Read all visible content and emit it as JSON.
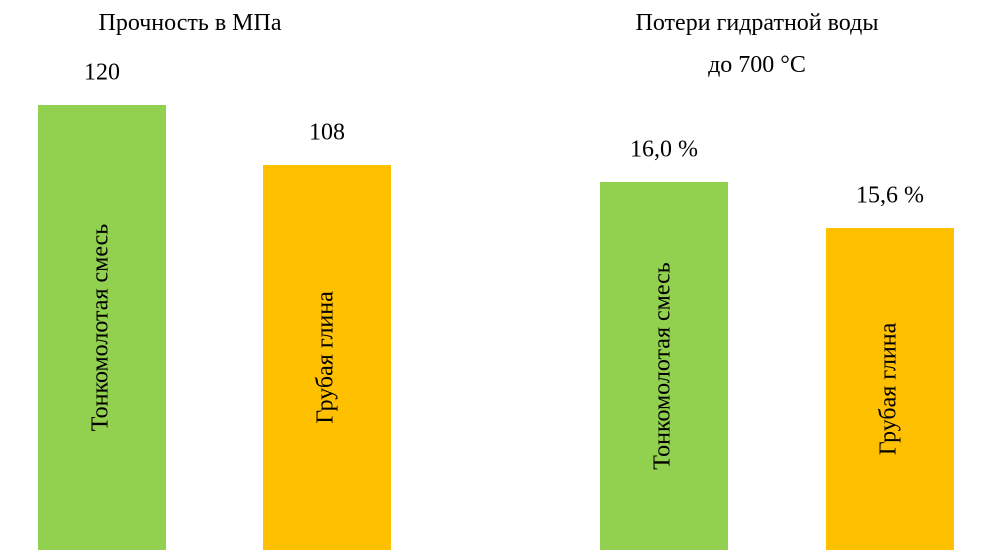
{
  "chart_data": [
    {
      "type": "bar",
      "title": "Прочность в МПа",
      "categories": [
        "Тонкомолотая смесь",
        "Грубая глина"
      ],
      "values": [
        120,
        108
      ],
      "colors": [
        "#92d050",
        "#ffc000"
      ],
      "ylim": [
        31,
        130
      ]
    },
    {
      "type": "bar",
      "title": "Потери гидратной воды до 700 °C",
      "categories": [
        "Тонкомолотая смесь",
        "Грубая глина"
      ],
      "values": [
        16.0,
        15.6
      ],
      "value_labels": [
        "16,0 %",
        "15,6 %"
      ],
      "colors": [
        "#92d050",
        "#ffc000"
      ],
      "ylim": [
        12.8,
        16.8
      ]
    }
  ]
}
